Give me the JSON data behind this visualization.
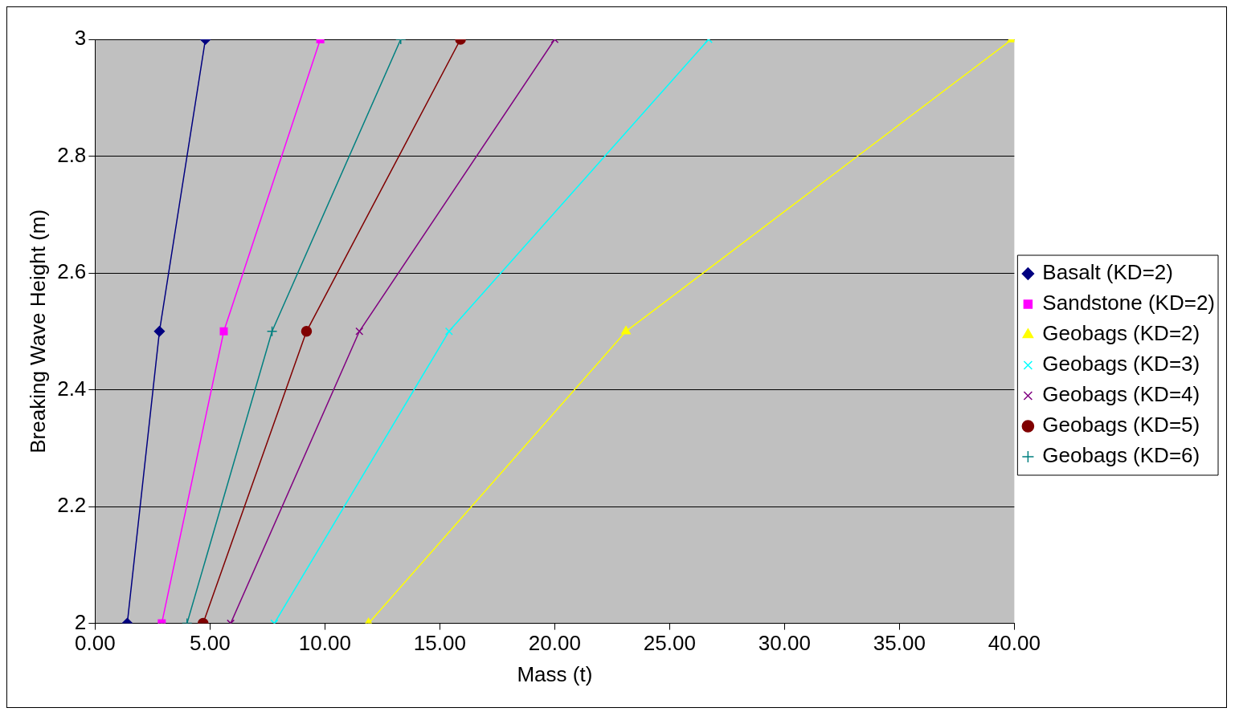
{
  "chart_data": {
    "type": "line",
    "xlabel": "Mass (t)",
    "ylabel": "Breaking Wave Height (m)",
    "xlim": [
      0,
      40
    ],
    "xticks": [
      {
        "value": 0,
        "label": "0.00"
      },
      {
        "value": 5,
        "label": "5.00"
      },
      {
        "value": 10,
        "label": "10.00"
      },
      {
        "value": 15,
        "label": "15.00"
      },
      {
        "value": 20,
        "label": "20.00"
      },
      {
        "value": 25,
        "label": "25.00"
      },
      {
        "value": 30,
        "label": "30.00"
      },
      {
        "value": 35,
        "label": "35.00"
      },
      {
        "value": 40,
        "label": "40.00"
      }
    ],
    "ylim": [
      2,
      3
    ],
    "yticks": [
      2,
      2.2,
      2.4,
      2.6,
      2.8,
      3
    ],
    "grid": "y",
    "legend": "right",
    "line_style": "solid",
    "series": [
      {
        "name": "Basalt (KD=2)",
        "color": "#000080",
        "marker": "diamond",
        "x": [
          1.4,
          2.8,
          4.8
        ],
        "values": [
          2,
          2.5,
          3
        ]
      },
      {
        "name": "Sandstone (KD=2)",
        "color": "#ff00ff",
        "marker": "square",
        "x": [
          2.9,
          5.6,
          9.8
        ],
        "values": [
          2,
          2.5,
          3
        ]
      },
      {
        "name": "Geobags (KD=2)",
        "color": "#ffff00",
        "marker": "triangle",
        "x": [
          11.9,
          23.1,
          39.9
        ],
        "values": [
          2,
          2.5,
          3
        ]
      },
      {
        "name": "Geobags (KD=3)",
        "color": "#00ffff",
        "marker": "cross",
        "x": [
          7.8,
          15.4,
          26.7
        ],
        "values": [
          2,
          2.5,
          3
        ]
      },
      {
        "name": "Geobags (KD=4)",
        "color": "#800080",
        "marker": "cross",
        "x": [
          5.9,
          11.5,
          20.0
        ],
        "values": [
          2,
          2.5,
          3
        ]
      },
      {
        "name": "Geobags (KD=5)",
        "color": "#800000",
        "marker": "circle",
        "x": [
          4.7,
          9.2,
          15.9
        ],
        "values": [
          2,
          2.5,
          3
        ]
      },
      {
        "name": "Geobags (KD=6)",
        "color": "#008080",
        "marker": "plus",
        "x": [
          4.0,
          7.7,
          13.3
        ],
        "values": [
          2,
          2.5,
          3
        ]
      }
    ]
  }
}
